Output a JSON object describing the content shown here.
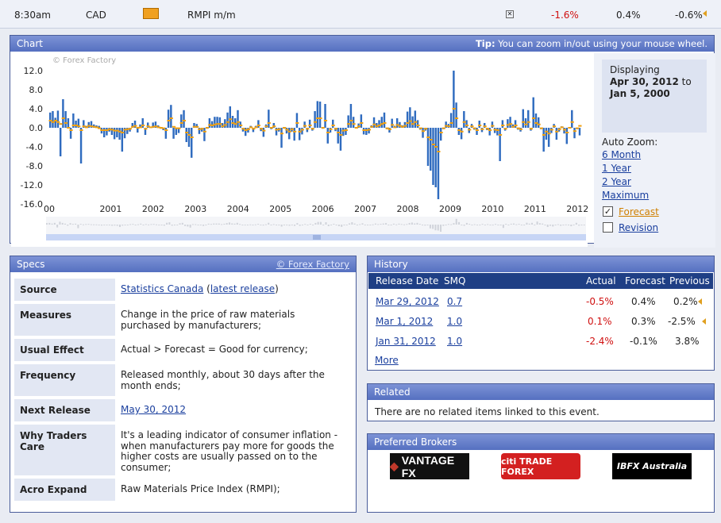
{
  "top_row": {
    "time": "8:30am",
    "currency": "CAD",
    "event": "RMPI m/m",
    "actual": "-1.6%",
    "forecast": "0.4%",
    "previous": "-0.6%",
    "impact_icon": "impact-folder-icon",
    "close_icon": "close-icon"
  },
  "chart_panel": {
    "title": "Chart",
    "tip_label": "Tip:",
    "tip_text": "You can zoom in/out using your mouse wheel.",
    "watermark": "© Forex Factory",
    "displaying_label": "Displaying",
    "date_from": "Apr 30, 2012",
    "to_label": "to",
    "date_to": "Jan 5, 2000",
    "auto_zoom_label": "Auto Zoom:",
    "zoom_options": [
      "6 Month",
      "1 Year",
      "2 Year",
      "Maximum"
    ],
    "forecast_label": "Forecast",
    "forecast_checked": true,
    "revision_label": "Revision",
    "revision_checked": false
  },
  "chart_data": {
    "type": "bar",
    "yticks": [
      "12.0",
      "8.0",
      "4.0",
      "0.0",
      "-4.0",
      "-8.0",
      "-12.0",
      "-16.0"
    ],
    "ylim": [
      -16,
      14
    ],
    "xticks": [
      "00",
      "2001",
      "2002",
      "2003",
      "2004",
      "2005",
      "2006",
      "2007",
      "2008",
      "2009",
      "2010",
      "2011",
      "2012"
    ],
    "xlim": [
      2000,
      2012.35
    ],
    "series": [
      {
        "values": [
          3.2,
          3.5,
          2.1,
          3.6,
          -6.0,
          6.0,
          3.5,
          2.0,
          -2.3,
          3.0,
          1.5,
          1.9,
          -7.5,
          1.6,
          0.4,
          1.2,
          1.4,
          0.7,
          0.5,
          0.4,
          -1.2,
          -2.0,
          -1.6,
          -0.8,
          -1.5,
          -2.4,
          -2.0,
          -2.5,
          -5.0,
          -2.2,
          -1.3,
          -0.8,
          1.0,
          1.5,
          -1.0,
          0.7,
          2.0,
          -1.5,
          1.1,
          0.2,
          1.1,
          1.3,
          0.5,
          -0.2,
          -0.5,
          -2.3,
          3.8,
          4.8,
          -2.3,
          -1.5,
          -1.1,
          2.8,
          3.7,
          -3.0,
          -4.0,
          -6.3,
          1.0,
          0.8,
          -1.3,
          -0.8,
          -2.8,
          -0.2,
          2.0,
          1.4,
          2.3,
          2.3,
          2.2,
          1.0,
          1.8,
          3.2,
          4.5,
          2.5,
          2.0,
          3.7,
          1.3,
          -0.8,
          -1.7,
          -1.0,
          0.4,
          -0.9,
          0.4,
          1.6,
          -0.7,
          -1.9,
          0.7,
          3.8,
          -0.3,
          1.0,
          -1.6,
          -0.8,
          -4.2,
          -0.2,
          -1.2,
          -2.4,
          -0.8,
          -2.7,
          3.1,
          -2.6,
          -1.4,
          1.3,
          -0.9,
          1.7,
          -0.6,
          3.5,
          5.6,
          5.5,
          -0.2,
          5.0,
          -3.3,
          -1.0,
          1.7,
          -0.7,
          -3.3,
          -4.8,
          -1.7,
          -1.5,
          2.6,
          5.0,
          2.3,
          -0.1,
          0.9,
          2.8,
          -1.4,
          -1.5,
          -1.2,
          0.5,
          2.2,
          1.0,
          1.6,
          2.3,
          3.2,
          -0.3,
          -1.0,
          1.9,
          0.4,
          2.0,
          1.2,
          0.5,
          1.2,
          3.4,
          4.3,
          2.4,
          3.6,
          1.6,
          -0.4,
          -2.1,
          -0.6,
          -8.0,
          -9.0,
          -12.0,
          -12.5,
          -15.0,
          -2.7,
          -0.3,
          1.3,
          0.8,
          3.1,
          12.0,
          5.3,
          -1.5,
          -2.4,
          3.5,
          1.6,
          -1.1,
          0.8,
          -0.4,
          -1.5,
          1.5,
          -0.9,
          1.0,
          -0.5,
          -1.6,
          1.3,
          -1.1,
          -1.6,
          -7.0,
          1.6,
          -0.6,
          1.8,
          2.3,
          0.7,
          1.6,
          -0.4,
          -0.8,
          3.9,
          2.0,
          3.7,
          -0.6,
          6.4,
          3.0,
          2.2,
          -0.3,
          -5.0,
          -2.5,
          -4.0,
          -1.1,
          0.8,
          -2.5,
          -0.8,
          0.3,
          -1.2,
          -3.4,
          0.1,
          3.7,
          -2.2,
          -0.3,
          -1.6
        ],
        "forecast": [
          1.5,
          1.2,
          1.5,
          1.2,
          0.8,
          2.0,
          1.0,
          0.0,
          -0.5,
          0.5,
          0.5,
          0.3,
          -0.5,
          0.3,
          0.1,
          0.4,
          0.3,
          0.2,
          0.1,
          -0.1,
          -0.5,
          -0.5,
          -0.5,
          -0.3,
          -0.4,
          -0.6,
          -0.6,
          -0.8,
          -1.0,
          -0.4,
          -0.3,
          -0.2,
          0.2,
          0.4,
          0.0,
          0.1,
          0.5,
          -0.2,
          0.3,
          0.1,
          0.2,
          0.3,
          0.1,
          0.0,
          -0.1,
          -0.5,
          1.5,
          2.0,
          0.2,
          -0.1,
          -0.1,
          1.0,
          1.5,
          -1.0,
          -1.5,
          -2.0,
          0.2,
          0.2,
          -0.3,
          -0.2,
          -0.8,
          0.0,
          0.6,
          0.5,
          0.7,
          0.8,
          0.8,
          0.3,
          0.6,
          1.2,
          1.8,
          1.0,
          0.8,
          1.2,
          0.5,
          -0.2,
          -0.5,
          -0.3,
          0.1,
          -0.2,
          0.1,
          0.5,
          -0.2,
          -0.6,
          0.3,
          1.0,
          0.0,
          0.3,
          -0.4,
          -0.3,
          -1.2,
          0.0,
          -0.4,
          -0.8,
          -0.3,
          -0.8,
          1.0,
          -0.8,
          -0.4,
          0.4,
          -0.2,
          0.5,
          -0.2,
          1.2,
          2.0,
          2.0,
          0.0,
          1.5,
          -1.0,
          -0.3,
          0.5,
          -0.2,
          -1.0,
          -1.5,
          -0.6,
          -0.5,
          0.8,
          1.5,
          0.8,
          0.0,
          0.3,
          1.0,
          -0.5,
          -0.5,
          -0.4,
          0.2,
          0.7,
          0.3,
          0.5,
          0.8,
          1.0,
          -0.1,
          -0.3,
          0.6,
          0.1,
          0.6,
          0.4,
          0.2,
          0.4,
          1.0,
          1.4,
          0.8,
          1.2,
          0.5,
          -0.1,
          -0.7,
          -0.2,
          -2.0,
          -2.5,
          -3.5,
          -4.0,
          -5.0,
          -1.0,
          -0.1,
          0.4,
          0.3,
          1.0,
          4.0,
          2.0,
          -0.5,
          -0.8,
          1.2,
          0.5,
          -0.4,
          0.3,
          -0.1,
          -0.5,
          0.5,
          -0.3,
          0.3,
          -0.2,
          -0.5,
          0.4,
          -0.4,
          -0.5,
          -1.5,
          0.5,
          -0.2,
          0.6,
          0.8,
          0.2,
          0.5,
          -0.1,
          -0.3,
          1.2,
          0.7,
          1.2,
          -0.2,
          2.0,
          1.0,
          0.7,
          -0.1,
          -1.5,
          -0.8,
          -1.2,
          -0.4,
          0.3,
          -0.8,
          -0.3,
          0.1,
          -0.4,
          -1.0,
          0.0,
          1.2,
          -0.7,
          -0.1,
          0.4
        ]
      }
    ]
  },
  "specs": {
    "title": "Specs",
    "copyright": "© Forex Factory",
    "rows": [
      {
        "label": "Source",
        "value": "Statistics Canada",
        "link2": "latest release"
      },
      {
        "label": "Measures",
        "value": "Change in the price of raw materials purchased by manufacturers;"
      },
      {
        "label": "Usual Effect",
        "value": "Actual > Forecast = Good for currency;"
      },
      {
        "label": "Frequency",
        "value": "Released monthly, about 30 days after the month ends;"
      },
      {
        "label": "Next Release",
        "value": "May 30, 2012"
      },
      {
        "label": "Why Traders Care",
        "value": "It's a leading indicator of consumer inflation - when manufacturers pay more for goods the higher costs are usually passed on to the consumer;"
      },
      {
        "label": "Acro Expand",
        "value": "Raw Materials Price Index (RMPI);"
      }
    ]
  },
  "history": {
    "title": "History",
    "columns": [
      "Release Date",
      "SMQ",
      "Actual",
      "Forecast",
      "Previous"
    ],
    "rows": [
      {
        "date": "Mar 29, 2012",
        "smq": "0.7",
        "actual": "-0.5%",
        "forecast": "0.4%",
        "previous": "0.2%"
      },
      {
        "date": "Mar 1, 2012",
        "smq": "1.0",
        "actual": "0.1%",
        "forecast": "0.3%",
        "previous": "-2.5%"
      },
      {
        "date": "Jan 31, 2012",
        "smq": "1.0",
        "actual": "-2.4%",
        "forecast": "-0.1%",
        "previous": "3.8%"
      }
    ],
    "more": "More"
  },
  "related": {
    "title": "Related",
    "text": "There are no related items linked to this event."
  },
  "brokers": {
    "title": "Preferred Brokers",
    "items": [
      "VANTAGE FX",
      "citi TRADE FOREX",
      "IBFX Australia"
    ]
  }
}
